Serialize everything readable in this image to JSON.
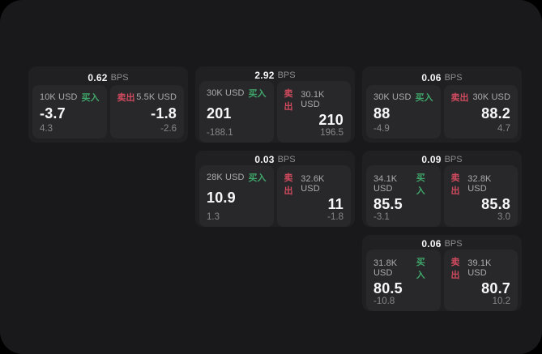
{
  "page": {
    "outer_bg": "#000000",
    "panel_bg": "#19191b",
    "card_bg": "#202022",
    "subpanel_bg": "#28282a"
  },
  "labels": {
    "bps_unit": "BPS",
    "buy": "买入",
    "sell": "卖出"
  },
  "colors": {
    "buy_label": "#3fa66a",
    "sell_label": "#cf4a5e"
  },
  "cards": [
    {
      "bps": "0.62",
      "row": 1,
      "col": 1,
      "buy": {
        "amount": "10K USD",
        "main": "-3.7",
        "sub": "4.3"
      },
      "sell": {
        "amount": "5.5K USD",
        "main": "-1.8",
        "sub": "-2.6"
      }
    },
    {
      "bps": "2.92",
      "row": 1,
      "col": 2,
      "buy": {
        "amount": "30K USD",
        "main": "201",
        "sub": "-188.1"
      },
      "sell": {
        "amount": "30.1K USD",
        "main": "210",
        "sub": "196.5"
      }
    },
    {
      "bps": "0.06",
      "row": 1,
      "col": 3,
      "buy": {
        "amount": "30K USD",
        "main": "88",
        "sub": "-4.9"
      },
      "sell": {
        "amount": "30K USD",
        "main": "88.2",
        "sub": "4.7"
      }
    },
    {
      "bps": "0.03",
      "row": 2,
      "col": 2,
      "buy": {
        "amount": "28K USD",
        "main": "10.9",
        "sub": "1.3"
      },
      "sell": {
        "amount": "32.6K USD",
        "main": "11",
        "sub": "-1.8"
      }
    },
    {
      "bps": "0.09",
      "row": 2,
      "col": 3,
      "buy": {
        "amount": "34.1K USD",
        "main": "85.5",
        "sub": "-3.1"
      },
      "sell": {
        "amount": "32.8K USD",
        "main": "85.8",
        "sub": "3.0"
      }
    },
    {
      "bps": "0.06",
      "row": 3,
      "col": 3,
      "buy": {
        "amount": "31.8K USD",
        "main": "80.5",
        "sub": "-10.8"
      },
      "sell": {
        "amount": "39.1K USD",
        "main": "80.7",
        "sub": "10.2"
      }
    }
  ]
}
